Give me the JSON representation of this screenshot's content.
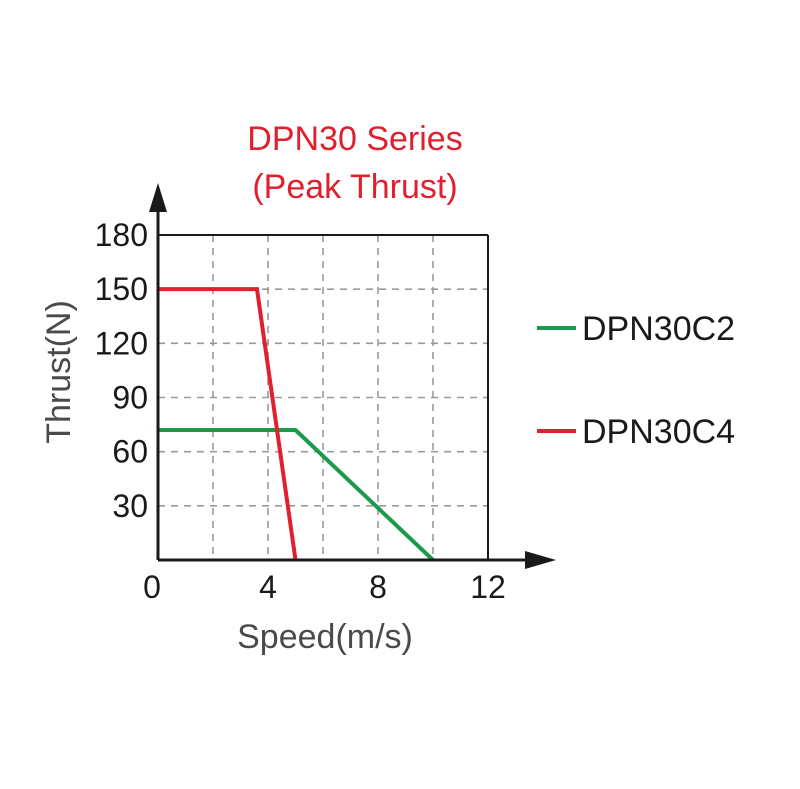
{
  "chart_data": {
    "type": "line",
    "title": [
      "DPN30 Series",
      "(Peak Thrust)"
    ],
    "xlabel": "Speed(m/s)",
    "ylabel": "Thrust(N)",
    "xlim": [
      0,
      12
    ],
    "ylim": [
      0,
      180
    ],
    "xticks": [
      0,
      4,
      8,
      12
    ],
    "xtick_labels": [
      "0",
      "4",
      "8",
      "12"
    ],
    "yticks": [
      30,
      60,
      90,
      120,
      150,
      180
    ],
    "ytick_labels": [
      "30",
      "60",
      "90",
      "120",
      "150",
      "180"
    ],
    "grid": true,
    "grid_style": "dashed",
    "legend_position": "right",
    "series": [
      {
        "name": "DPN30C2",
        "color": "#1a9a4a",
        "x": [
          0,
          5,
          10
        ],
        "y": [
          72,
          72,
          0
        ]
      },
      {
        "name": "DPN30C4",
        "color": "#e0202e",
        "x": [
          0,
          3.6,
          5
        ],
        "y": [
          150,
          150,
          0
        ]
      }
    ]
  },
  "colors": {
    "title": "#e0202e",
    "axis": "#1a1a1a",
    "grid": "#9a9a9a"
  }
}
